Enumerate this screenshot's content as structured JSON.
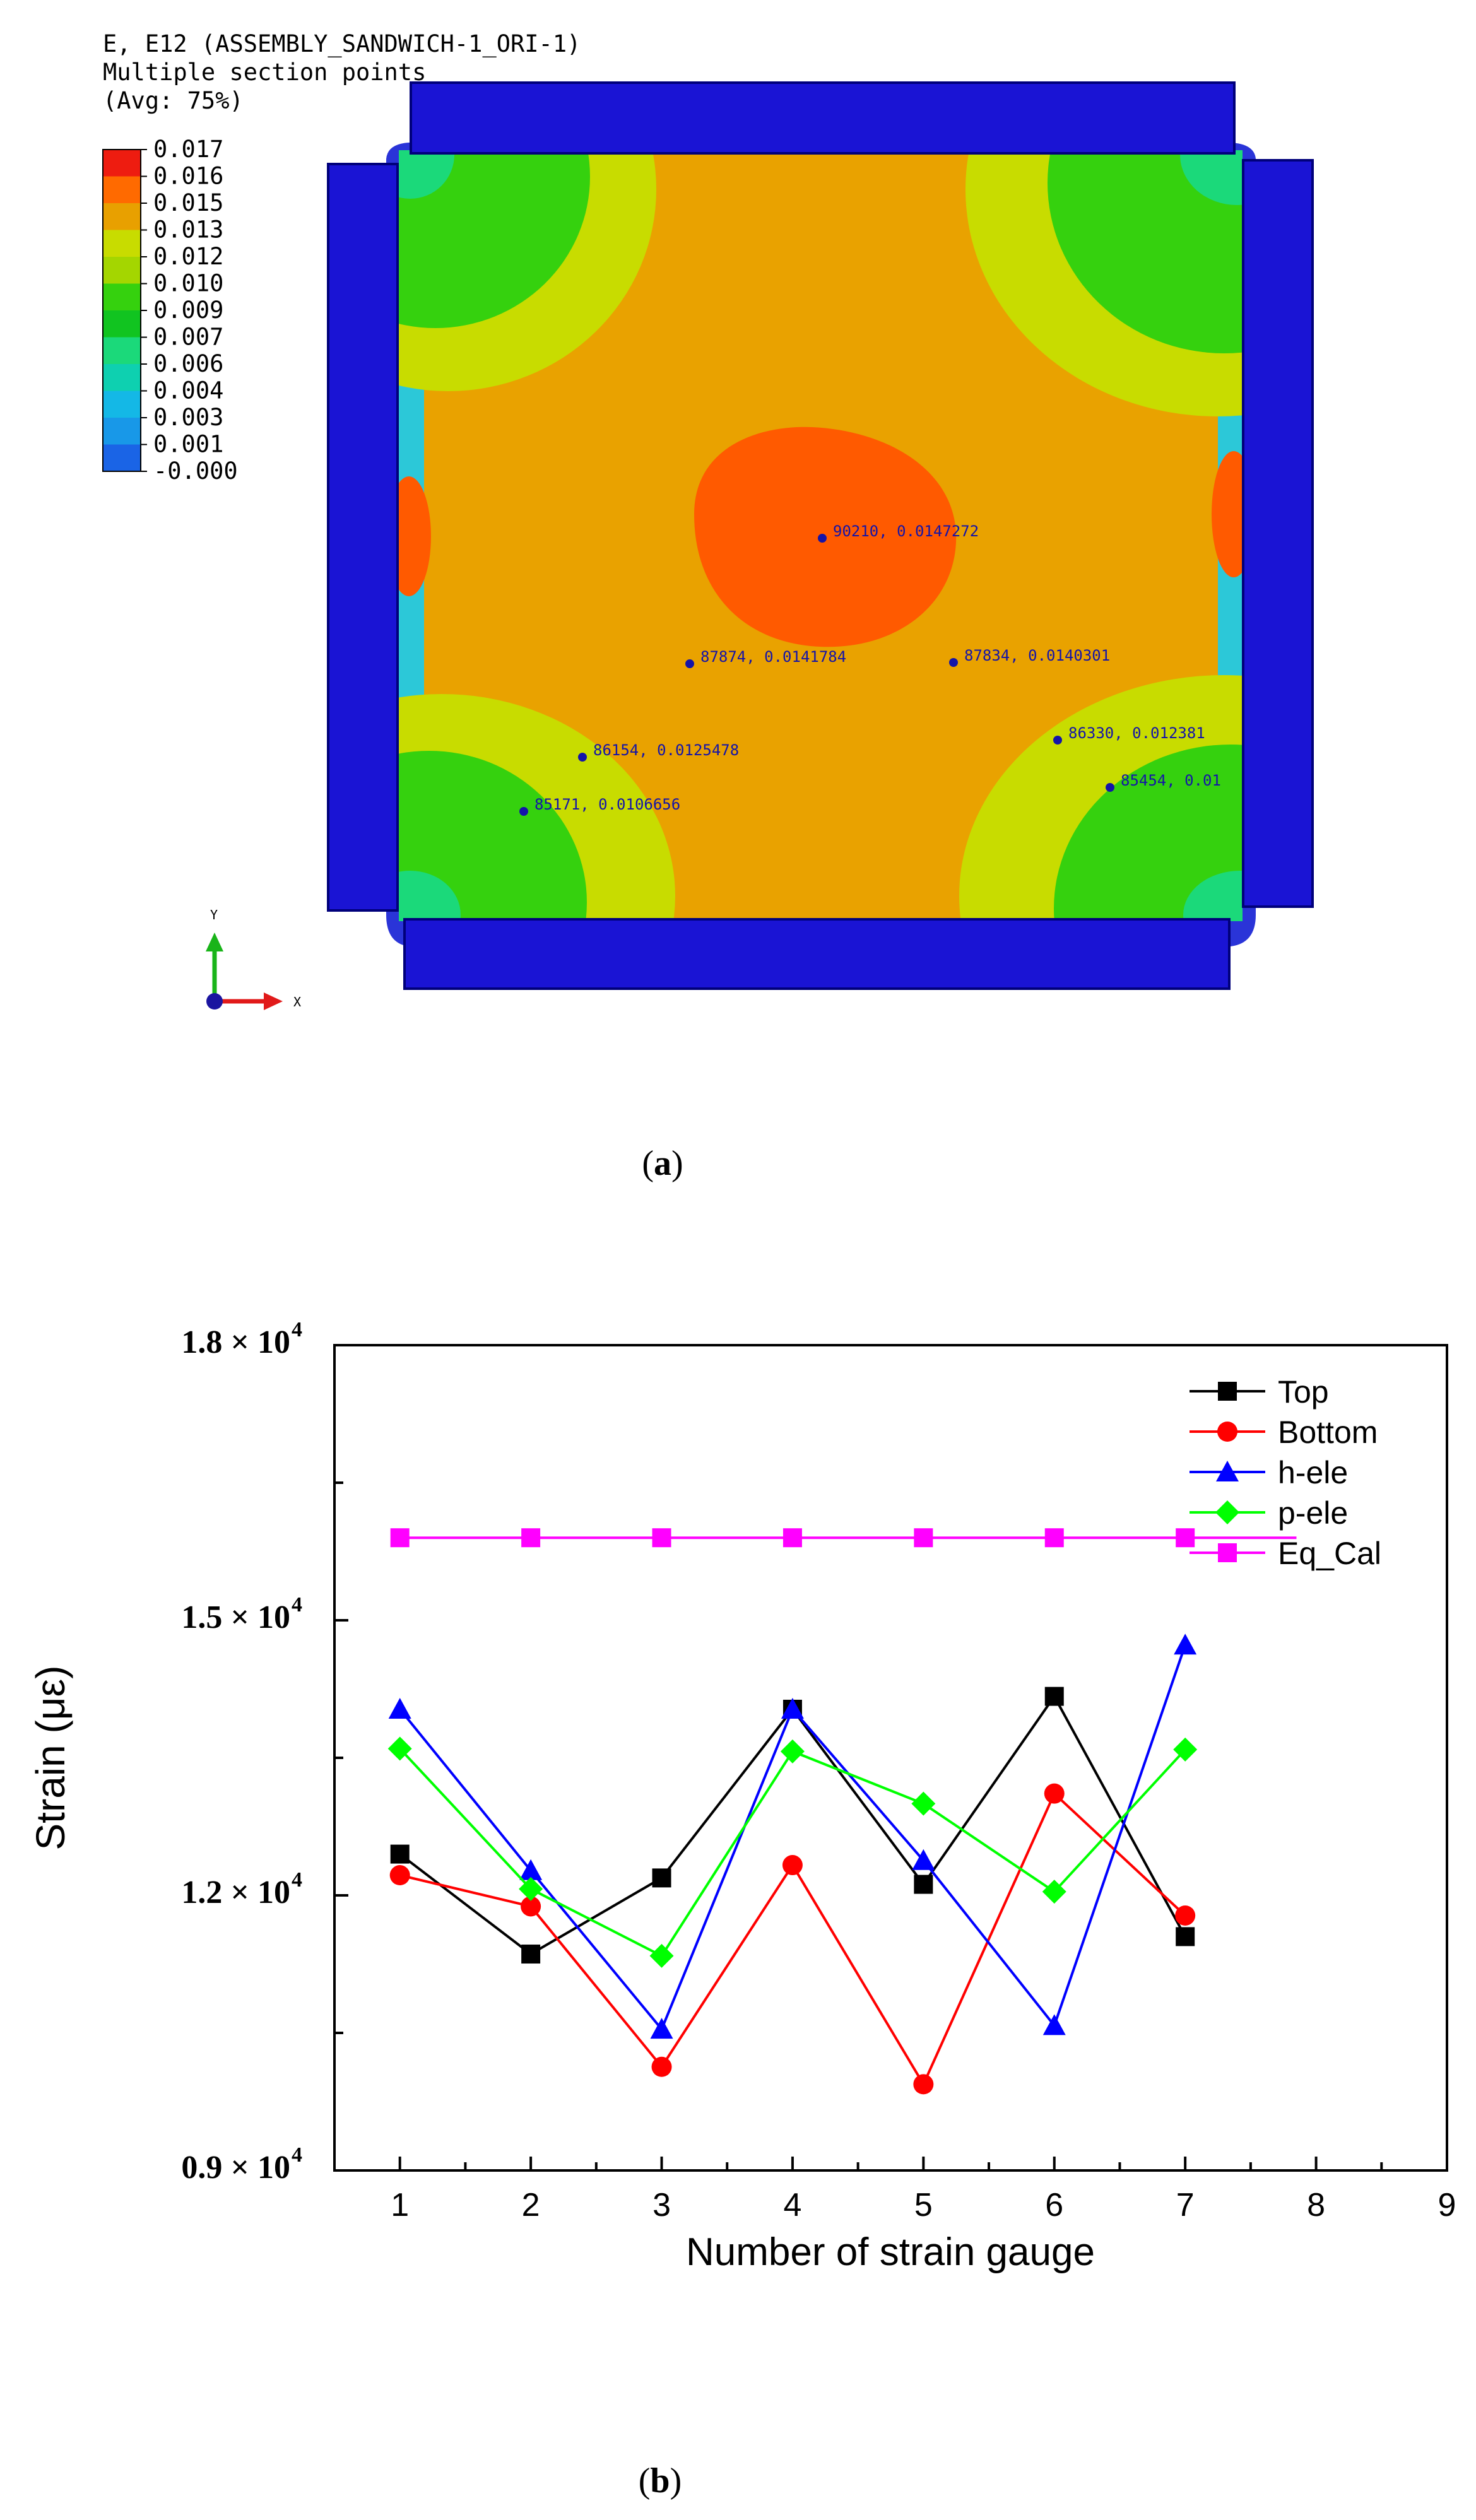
{
  "figure_a": {
    "header_lines": [
      "E, E12 (ASSEMBLY_SANDWICH-1_ORI-1)",
      "Multiple section points",
      "(Avg: 75%)"
    ],
    "legend_levels": [
      "0.017",
      "0.016",
      "0.015",
      "0.013",
      "0.012",
      "0.010",
      "0.009",
      "0.007",
      "0.006",
      "0.004",
      "0.003",
      "0.001",
      "-0.000"
    ],
    "legend_colors": [
      "#ee1c10",
      "#ff6a00",
      "#e8a000",
      "#c8dc00",
      "#a4d600",
      "#35d10e",
      "#11c420",
      "#1bd97a",
      "#0ed0b0",
      "#14b8e6",
      "#1898e8",
      "#1a64e6",
      "#1a0fd4"
    ],
    "probes": [
      {
        "label": "90210, 0.0147272"
      },
      {
        "label": "87874, 0.0141784"
      },
      {
        "label": "87834, 0.0140301"
      },
      {
        "label": "86154, 0.0125478"
      },
      {
        "label": "86330, 0.012381"
      },
      {
        "label": "85171, 0.0106656"
      },
      {
        "label": "85454, 0.01"
      }
    ],
    "axis_y_label": "Y",
    "axis_x_label": "X",
    "caption_letter": "a"
  },
  "chart_data": {
    "type": "line",
    "xlabel": "Number of strain gauge",
    "ylabel": "Strain (με)",
    "xlim": [
      0.5,
      9
    ],
    "ylim": [
      9000,
      18000
    ],
    "x_ticks": [
      1,
      2,
      3,
      4,
      5,
      6,
      7,
      8,
      9
    ],
    "y_ticks": [
      {
        "value": 18000,
        "mantissa": "1.8",
        "times": "×",
        "base": "10",
        "exp": "4"
      },
      {
        "value": 15000,
        "mantissa": "1.5",
        "times": "×",
        "base": "10",
        "exp": "4"
      },
      {
        "value": 12000,
        "mantissa": "1.2",
        "times": "×",
        "base": "10",
        "exp": "4"
      },
      {
        "value": 9000,
        "mantissa": "0.9",
        "times": "×",
        "base": "10",
        "exp": "4"
      }
    ],
    "legend_position": "top-right",
    "series": [
      {
        "name": "Top",
        "color": "#000000",
        "marker": "square",
        "x": [
          1,
          2,
          3,
          4,
          5,
          6,
          7
        ],
        "values": [
          12450,
          11360,
          12190,
          14030,
          12120,
          14170,
          11550
        ]
      },
      {
        "name": "Bottom",
        "color": "#ff0000",
        "marker": "circle",
        "x": [
          1,
          2,
          3,
          4,
          5,
          6,
          7
        ],
        "values": [
          12220,
          11880,
          10130,
          12330,
          9940,
          13110,
          11780
        ]
      },
      {
        "name": "h-ele",
        "color": "#0000ff",
        "marker": "triangle",
        "x": [
          1,
          2,
          3,
          4,
          5,
          6,
          7
        ],
        "values": [
          14030,
          12270,
          10540,
          14030,
          12380,
          10580,
          14730
        ]
      },
      {
        "name": "p-ele",
        "color": "#00ff00",
        "marker": "diamond",
        "x": [
          1,
          2,
          3,
          4,
          5,
          6,
          7
        ],
        "values": [
          13600,
          12070,
          11340,
          13570,
          13000,
          12040,
          13590
        ]
      },
      {
        "name": "Eq_Cal",
        "color": "#ff00ff",
        "marker": "square",
        "x": [
          1,
          2,
          3,
          4,
          5,
          6,
          7
        ],
        "values": [
          15900,
          15900,
          15900,
          15900,
          15900,
          15900,
          15900
        ],
        "line_extends_to": 7.85
      }
    ],
    "caption_letter": "b"
  }
}
